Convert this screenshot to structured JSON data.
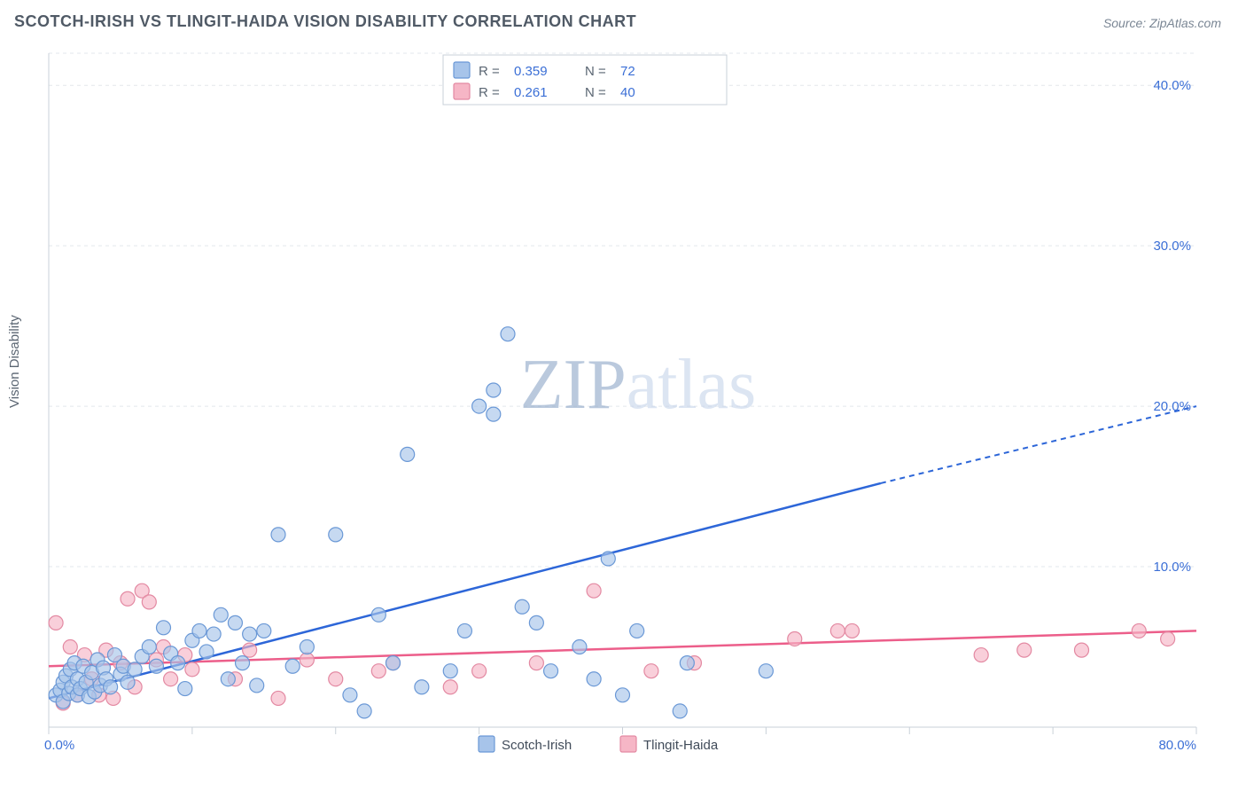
{
  "title": "SCOTCH-IRISH VS TLINGIT-HAIDA VISION DISABILITY CORRELATION CHART",
  "source": "Source: ZipAtlas.com",
  "ylabel": "Vision Disability",
  "watermark_a": "ZIP",
  "watermark_b": "atlas",
  "chart": {
    "type": "scatter",
    "xlim": [
      0,
      80
    ],
    "ylim": [
      0,
      42
    ],
    "y_ticks": [
      10,
      20,
      30,
      40
    ],
    "y_tick_labels": [
      "10.0%",
      "20.0%",
      "30.0%",
      "40.0%"
    ],
    "x_origin_label": "0.0%",
    "x_end_label": "80.0%",
    "x_tick_positions": [
      0,
      10,
      20,
      30,
      40,
      50,
      60,
      70,
      80
    ],
    "background_color": "#ffffff",
    "grid_color": "#e3e7ec",
    "axis_color": "#c9d0d8",
    "tick_label_color": "#3b6fd6",
    "ylabel_color": "#5a6572",
    "series": [
      {
        "name": "Scotch-Irish",
        "marker_fill": "#a7c4ea",
        "marker_stroke": "#6a98d6",
        "marker_r": 8,
        "trend_color": "#2d66d8",
        "trend_width": 2.5,
        "trend_solid": {
          "x1": 0,
          "y1": 1.8,
          "x2": 58,
          "y2": 15.2
        },
        "trend_dash": {
          "x1": 58,
          "y1": 15.2,
          "x2": 80,
          "y2": 20.0
        },
        "R": "0.359",
        "N": "72",
        "points": [
          [
            0.5,
            2.0
          ],
          [
            0.8,
            2.3
          ],
          [
            1.0,
            1.6
          ],
          [
            1.0,
            2.8
          ],
          [
            1.2,
            3.2
          ],
          [
            1.4,
            2.1
          ],
          [
            1.5,
            3.6
          ],
          [
            1.6,
            2.5
          ],
          [
            1.8,
            4.0
          ],
          [
            2.0,
            2.0
          ],
          [
            2.0,
            3.0
          ],
          [
            2.2,
            2.4
          ],
          [
            2.4,
            3.8
          ],
          [
            2.6,
            2.8
          ],
          [
            2.8,
            1.9
          ],
          [
            3.0,
            3.4
          ],
          [
            3.2,
            2.2
          ],
          [
            3.4,
            4.2
          ],
          [
            3.6,
            2.6
          ],
          [
            3.8,
            3.7
          ],
          [
            4.0,
            3.0
          ],
          [
            4.3,
            2.5
          ],
          [
            4.6,
            4.5
          ],
          [
            5.0,
            3.3
          ],
          [
            5.2,
            3.8
          ],
          [
            5.5,
            2.8
          ],
          [
            6.0,
            3.6
          ],
          [
            6.5,
            4.4
          ],
          [
            7.0,
            5.0
          ],
          [
            7.5,
            3.8
          ],
          [
            8.0,
            6.2
          ],
          [
            8.5,
            4.6
          ],
          [
            9.0,
            4.0
          ],
          [
            9.5,
            2.4
          ],
          [
            10.0,
            5.4
          ],
          [
            10.5,
            6.0
          ],
          [
            11.0,
            4.7
          ],
          [
            11.5,
            5.8
          ],
          [
            12.0,
            7.0
          ],
          [
            12.5,
            3.0
          ],
          [
            13.0,
            6.5
          ],
          [
            13.5,
            4.0
          ],
          [
            14.0,
            5.8
          ],
          [
            14.5,
            2.6
          ],
          [
            15.0,
            6.0
          ],
          [
            16.0,
            12.0
          ],
          [
            17.0,
            3.8
          ],
          [
            18.0,
            5.0
          ],
          [
            20.0,
            12.0
          ],
          [
            21.0,
            2.0
          ],
          [
            22.0,
            1.0
          ],
          [
            23.0,
            7.0
          ],
          [
            24.0,
            4.0
          ],
          [
            25.0,
            17.0
          ],
          [
            26.0,
            2.5
          ],
          [
            28.0,
            3.5
          ],
          [
            29.0,
            6.0
          ],
          [
            30.0,
            20.0
          ],
          [
            31.0,
            19.5
          ],
          [
            31.0,
            21.0
          ],
          [
            32.0,
            24.5
          ],
          [
            33.0,
            7.5
          ],
          [
            34.0,
            6.5
          ],
          [
            35.0,
            3.5
          ],
          [
            37.0,
            5.0
          ],
          [
            38.0,
            3.0
          ],
          [
            39.0,
            10.5
          ],
          [
            40.0,
            2.0
          ],
          [
            41.0,
            6.0
          ],
          [
            44.0,
            1.0
          ],
          [
            44.5,
            4.0
          ],
          [
            50.0,
            3.5
          ]
        ]
      },
      {
        "name": "Tlingit-Haida",
        "marker_fill": "#f6b6c6",
        "marker_stroke": "#e389a2",
        "marker_r": 8,
        "trend_color": "#ec5e8a",
        "trend_width": 2.5,
        "trend_solid": {
          "x1": 0,
          "y1": 3.8,
          "x2": 80,
          "y2": 6.0
        },
        "R": "0.261",
        "N": "40",
        "points": [
          [
            0.5,
            6.5
          ],
          [
            1.0,
            1.5
          ],
          [
            1.5,
            5.0
          ],
          [
            2.0,
            2.0
          ],
          [
            2.5,
            4.5
          ],
          [
            3.0,
            3.0
          ],
          [
            3.5,
            2.0
          ],
          [
            4.0,
            4.8
          ],
          [
            4.5,
            1.8
          ],
          [
            5.0,
            4.0
          ],
          [
            5.5,
            8.0
          ],
          [
            6.0,
            2.5
          ],
          [
            6.5,
            8.5
          ],
          [
            7.0,
            7.8
          ],
          [
            7.5,
            4.2
          ],
          [
            8.0,
            5.0
          ],
          [
            8.5,
            3.0
          ],
          [
            9.5,
            4.5
          ],
          [
            10.0,
            3.6
          ],
          [
            13.0,
            3.0
          ],
          [
            14.0,
            4.8
          ],
          [
            16.0,
            1.8
          ],
          [
            18.0,
            4.2
          ],
          [
            20.0,
            3.0
          ],
          [
            23.0,
            3.5
          ],
          [
            24.0,
            4.0
          ],
          [
            28.0,
            2.5
          ],
          [
            30.0,
            3.5
          ],
          [
            34.0,
            4.0
          ],
          [
            38.0,
            8.5
          ],
          [
            42.0,
            3.5
          ],
          [
            45.0,
            4.0
          ],
          [
            52.0,
            5.5
          ],
          [
            55.0,
            6.0
          ],
          [
            56.0,
            6.0
          ],
          [
            65.0,
            4.5
          ],
          [
            68.0,
            4.8
          ],
          [
            72.0,
            4.8
          ],
          [
            76.0,
            6.0
          ],
          [
            78.0,
            5.5
          ]
        ]
      }
    ],
    "legend": {
      "items": [
        {
          "label": "Scotch-Irish",
          "swatch": "blue"
        },
        {
          "label": "Tlingit-Haida",
          "swatch": "pink"
        }
      ]
    }
  }
}
